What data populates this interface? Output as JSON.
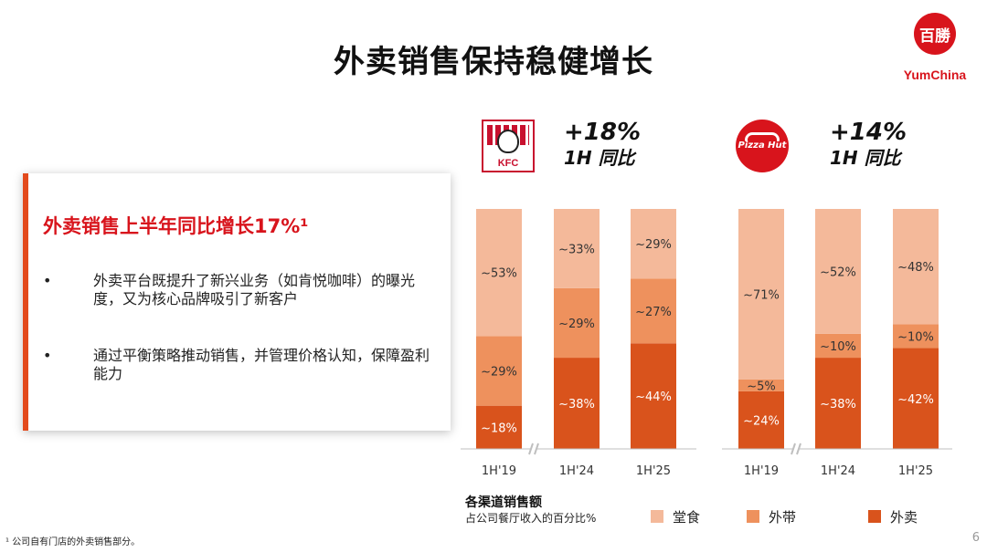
{
  "title": "外卖销售保持稳健增长",
  "logo": {
    "mark": "百勝",
    "text": "YumChina"
  },
  "card": {
    "heading": "外卖销售上半年同比增长17%¹",
    "bullets": [
      {
        "dot": "•",
        "text": "外卖平台既提升了新兴业务（如肯悦咖啡）的曝光度，又为核心品牌吸引了新客户"
      },
      {
        "dot": "•",
        "text": "通过平衡策略推动销售，并管理价格认知，保障盈利能力"
      }
    ]
  },
  "brands": [
    {
      "name": "KFC",
      "logo_text": "KFC",
      "growth": "+18%",
      "growth_sub": "1H 同比"
    },
    {
      "name": "Pizza Hut",
      "logo_text": "Pizza Hut",
      "growth": "+14%",
      "growth_sub": "1H 同比"
    }
  ],
  "colors": {
    "dine_in": "#f4b99a",
    "takeaway": "#ee915d",
    "delivery": "#d9531c",
    "accent": "#d8141c"
  },
  "chart_data": [
    {
      "type": "bar",
      "stacked": true,
      "brand": "KFC",
      "categories": [
        "1H'19",
        "1H'24",
        "1H'25"
      ],
      "series": [
        {
          "name": "外卖",
          "values": [
            18,
            38,
            44
          ],
          "labels": [
            "~18%",
            "~38%",
            "~44%"
          ]
        },
        {
          "name": "外带",
          "values": [
            29,
            29,
            27
          ],
          "labels": [
            "~29%",
            "~29%",
            "~27%"
          ]
        },
        {
          "name": "堂食",
          "values": [
            53,
            33,
            29
          ],
          "labels": [
            "~53%",
            "~33%",
            "~29%"
          ]
        }
      ],
      "ylim": [
        0,
        100
      ],
      "axis_break_between": [
        0,
        1
      ]
    },
    {
      "type": "bar",
      "stacked": true,
      "brand": "Pizza Hut",
      "categories": [
        "1H'19",
        "1H'24",
        "1H'25"
      ],
      "series": [
        {
          "name": "外卖",
          "values": [
            24,
            38,
            42
          ],
          "labels": [
            "~24%",
            "~38%",
            "~42%"
          ]
        },
        {
          "name": "外带",
          "values": [
            5,
            10,
            10
          ],
          "labels": [
            "~5%",
            "~10%",
            "~10%"
          ]
        },
        {
          "name": "堂食",
          "values": [
            71,
            52,
            48
          ],
          "labels": [
            "~71%",
            "~52%",
            "~48%"
          ]
        }
      ],
      "ylim": [
        0,
        100
      ],
      "axis_break_between": [
        0,
        1
      ]
    }
  ],
  "legend": {
    "title": "各渠道销售额",
    "subtitle": "占公司餐厅收入的百分比%",
    "items": [
      {
        "label": "堂食",
        "color": "#f4b99a"
      },
      {
        "label": "外带",
        "color": "#ee915d"
      },
      {
        "label": "外卖",
        "color": "#d9531c"
      }
    ]
  },
  "footnote": "¹ 公司自有门店的外卖销售部分。",
  "page_number": "6"
}
